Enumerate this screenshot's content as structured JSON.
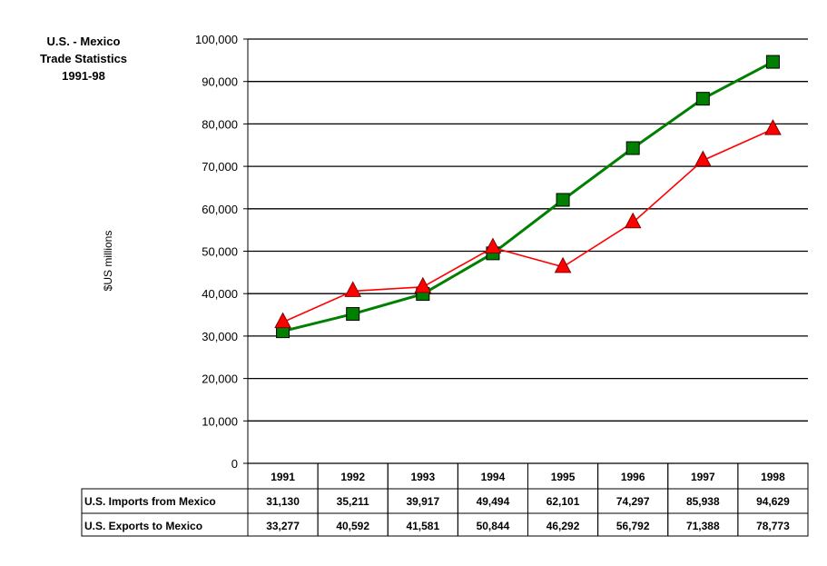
{
  "chart_data": {
    "type": "line",
    "title_lines": [
      "U.S. - Mexico",
      "Trade Statistics",
      "1991-98"
    ],
    "ylabel": "$US millions",
    "xlabel": "",
    "categories": [
      "1991",
      "1992",
      "1993",
      "1994",
      "1995",
      "1996",
      "1997",
      "1998"
    ],
    "ylim": [
      0,
      100000
    ],
    "yticks": [
      "0",
      "10,000",
      "20,000",
      "30,000",
      "40,000",
      "50,000",
      "60,000",
      "70,000",
      "80,000",
      "90,000",
      "100,000"
    ],
    "grid": true,
    "legend": "data table below chart",
    "series": [
      {
        "name": "U.S. Imports from Mexico",
        "values": [
          31130,
          35211,
          39917,
          49494,
          62101,
          74297,
          85938,
          94629
        ],
        "labels": [
          "31,130",
          "35,211",
          "39,917",
          "49,494",
          "62,101",
          "74,297",
          "85,938",
          "94,629"
        ],
        "color": "#008000",
        "marker": "square"
      },
      {
        "name": "U.S. Exports to Mexico",
        "values": [
          33277,
          40592,
          41581,
          50844,
          46292,
          56792,
          71388,
          78773
        ],
        "labels": [
          "33,277",
          "40,592",
          "41,581",
          "50,844",
          "46,292",
          "56,792",
          "71,388",
          "78,773"
        ],
        "color": "#ff0000",
        "marker": "triangle"
      }
    ]
  }
}
